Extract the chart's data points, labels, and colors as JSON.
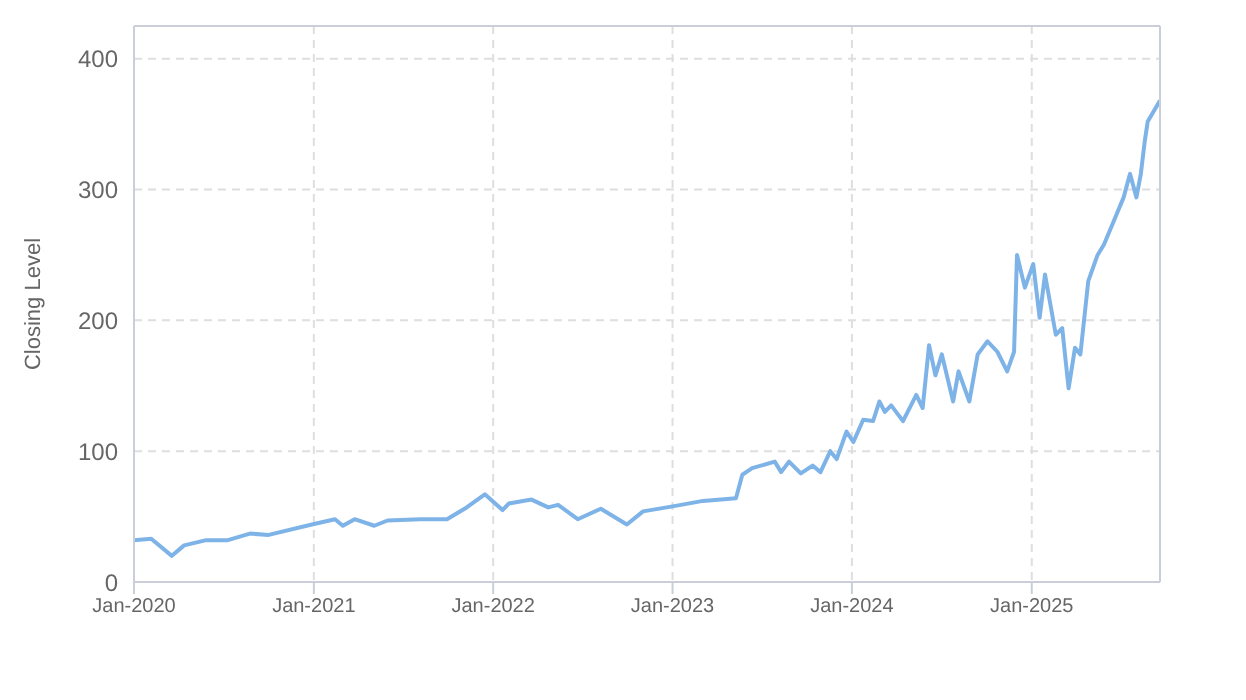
{
  "chart_data": {
    "type": "line",
    "ylabel": "Closing Level",
    "grid": true,
    "line_style": "solid",
    "marker": "none",
    "xlim": [
      "2020-01-01",
      "2025-09-19"
    ],
    "ylim": [
      0,
      425
    ],
    "yticks": [
      0,
      100,
      200,
      300,
      400
    ],
    "xticks": [
      {
        "value": "2020-01-01",
        "label": "Jan-2020"
      },
      {
        "value": "2021-01-01",
        "label": "Jan-2021"
      },
      {
        "value": "2022-01-01",
        "label": "Jan-2022"
      },
      {
        "value": "2023-01-01",
        "label": "Jan-2023"
      },
      {
        "value": "2024-01-01",
        "label": "Jan-2024"
      },
      {
        "value": "2025-01-01",
        "label": "Jan-2025"
      }
    ],
    "x": [
      "2020-01-01",
      "2020-02-05",
      "2020-03-18",
      "2020-04-12",
      "2020-05-27",
      "2020-07-10",
      "2020-08-24",
      "2020-10-01",
      "2020-12-28",
      "2021-02-13",
      "2021-03-01",
      "2021-03-25",
      "2021-05-04",
      "2021-05-31",
      "2021-08-06",
      "2021-09-29",
      "2021-11-08",
      "2021-12-15",
      "2022-01-20",
      "2022-02-02",
      "2022-03-20",
      "2022-04-23",
      "2022-05-13",
      "2022-06-22",
      "2022-08-08",
      "2022-09-30",
      "2022-11-02",
      "2023-01-04",
      "2023-03-04",
      "2023-05-10",
      "2023-05-23",
      "2023-06-12",
      "2023-07-28",
      "2023-08-10",
      "2023-08-26",
      "2023-09-19",
      "2023-10-13",
      "2023-10-29",
      "2023-11-18",
      "2023-12-01",
      "2023-12-21",
      "2024-01-04",
      "2024-01-24",
      "2024-02-13",
      "2024-02-26",
      "2024-03-08",
      "2024-03-21",
      "2024-04-14",
      "2024-05-11",
      "2024-05-24",
      "2024-06-06",
      "2024-06-19",
      "2024-07-02",
      "2024-07-25",
      "2024-08-05",
      "2024-08-27",
      "2024-09-13",
      "2024-10-03",
      "2024-10-23",
      "2024-11-12",
      "2024-11-26",
      "2024-12-02",
      "2024-12-18",
      "2025-01-04",
      "2025-01-17",
      "2025-01-28",
      "2025-02-19",
      "2025-03-04",
      "2025-03-17",
      "2025-03-30",
      "2025-04-10",
      "2025-04-26",
      "2025-05-15",
      "2025-05-28",
      "2025-06-17",
      "2025-07-07",
      "2025-07-20",
      "2025-08-02",
      "2025-08-11",
      "2025-08-19",
      "2025-08-25",
      "2025-09-19"
    ],
    "series": [
      {
        "color": "#7eb3e8",
        "values": [
          32,
          33,
          20,
          28,
          32,
          32,
          37,
          36,
          44,
          48,
          43,
          48,
          43,
          47,
          48,
          48,
          57,
          67,
          55,
          60,
          63,
          57,
          59,
          48,
          56,
          44,
          54,
          58,
          62,
          64,
          82,
          87,
          92,
          84,
          92,
          83,
          89,
          84,
          100,
          94,
          115,
          107,
          124,
          123,
          138,
          130,
          135,
          123,
          143,
          133,
          181,
          158,
          174,
          138,
          161,
          138,
          174,
          184,
          176,
          161,
          176,
          250,
          225,
          243,
          202,
          235,
          189,
          194,
          148,
          179,
          174,
          230,
          250,
          258,
          276,
          294,
          312,
          294,
          312,
          337,
          352,
          368
        ]
      }
    ]
  }
}
